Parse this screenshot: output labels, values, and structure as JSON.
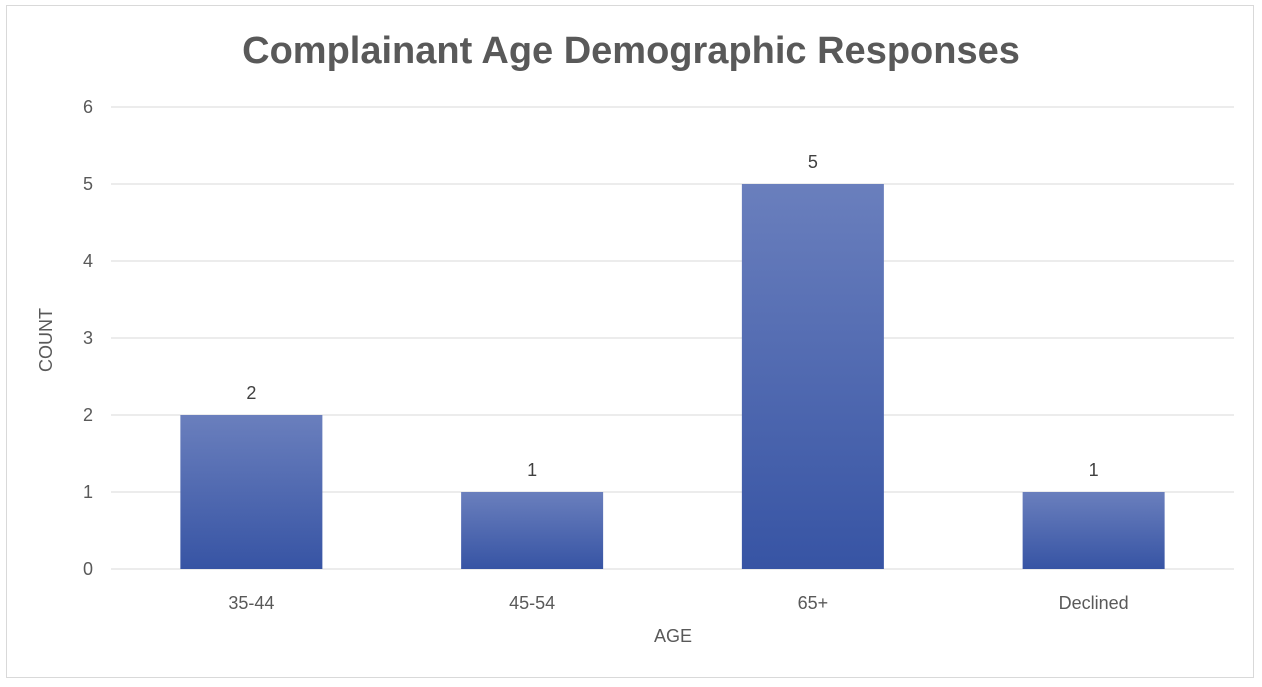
{
  "chart_data": {
    "type": "bar",
    "title": "Complainant Age Demographic Responses",
    "xlabel": "AGE",
    "ylabel": "COUNT",
    "categories": [
      "35-44",
      "45-54",
      "65+",
      "Declined"
    ],
    "values": [
      2,
      1,
      5,
      1
    ],
    "y_ticks": [
      "0",
      "1",
      "2",
      "3",
      "4",
      "5",
      "6"
    ],
    "ylim": [
      0,
      6
    ],
    "grid": true,
    "legend": "none",
    "data_labels": [
      "2",
      "1",
      "5",
      "1"
    ],
    "colors": {
      "bar_top": "#6a7fbd",
      "bar_bottom": "#3754a4",
      "grid": "#d9d9d9",
      "text": "#595959"
    }
  }
}
